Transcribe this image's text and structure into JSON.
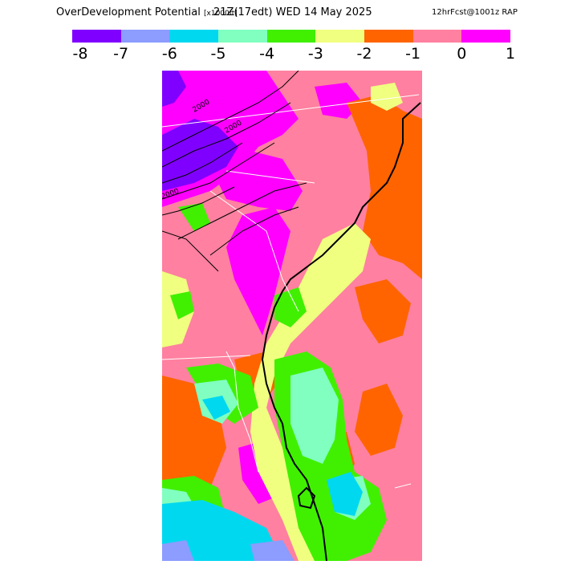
{
  "header": {
    "title": "OverDevelopment Potential",
    "units": "[x1000ft]",
    "valid_time": "21Z(17edt) WED 14 May 2025",
    "forecast_info": "12hrFcst@1001z RAP"
  },
  "legend": {
    "colors": [
      "#8000ff",
      "#8c9cff",
      "#00d8f0",
      "#80ffc0",
      "#40f000",
      "#f0ff80",
      "#ff6400",
      "#ff80a0",
      "#ff00ff"
    ],
    "labels": [
      "-8",
      "-7",
      "-6",
      "-5",
      "-4",
      "-3",
      "-2",
      "-1",
      "0",
      "1"
    ]
  },
  "map": {
    "contour_labels": [
      "2000",
      "2000",
      "2000"
    ]
  }
}
